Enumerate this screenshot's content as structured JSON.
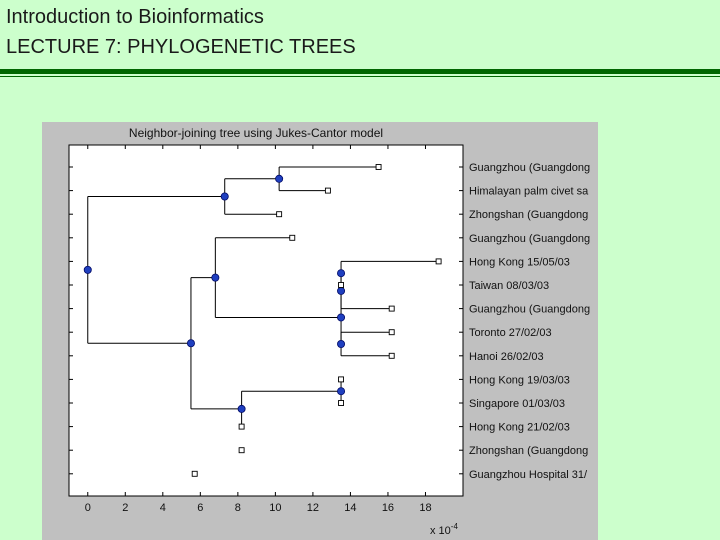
{
  "slide": {
    "title_line1": "Introduction to Bioinformatics",
    "title_line2": "LECTURE 7: PHYLOGENETIC TREES"
  },
  "chart_data": {
    "type": "tree",
    "title": "Neighbor-joining tree using Jukes-Cantor model",
    "xlabel": "",
    "x_multiplier_label": "x 10",
    "x_multiplier_exponent": "-4",
    "xlim": [
      -1,
      20
    ],
    "x_ticks": [
      0,
      2,
      4,
      6,
      8,
      10,
      12,
      14,
      16,
      18
    ],
    "leaves": [
      {
        "label": "Guangzhou (Guangdong",
        "x": 15.5
      },
      {
        "label": "Himalayan palm civet sa",
        "x": 12.8
      },
      {
        "label": "Zhongshan (Guangdong",
        "x": 10.2
      },
      {
        "label": "Guangzhou (Guangdong",
        "x": 10.9
      },
      {
        "label": "Hong Kong 15/05/03",
        "x": 18.7
      },
      {
        "label": "Taiwan 08/03/03",
        "x": 13.5
      },
      {
        "label": "Guangzhou (Guangdong",
        "x": 16.2
      },
      {
        "label": "Toronto 27/02/03",
        "x": 16.2
      },
      {
        "label": "Hanoi 26/02/03",
        "x": 16.2
      },
      {
        "label": "Hong Kong 19/03/03",
        "x": 13.5
      },
      {
        "label": "Singapore 01/03/03",
        "x": 13.5
      },
      {
        "label": "Hong Kong 21/02/03",
        "x": 8.2
      },
      {
        "label": "Zhongshan (Guangdong",
        "x": 8.2
      },
      {
        "label": "Guangzhou Hospital 31/",
        "x": 5.7
      }
    ],
    "internal_nodes": [
      {
        "id": "n1",
        "x": 10.2,
        "children": [
          "L0",
          "L1"
        ]
      },
      {
        "id": "n2",
        "x": 7.3,
        "children": [
          "n1",
          "L2"
        ]
      },
      {
        "id": "n3",
        "x": 13.5,
        "children": [
          "L4",
          "L5"
        ]
      },
      {
        "id": "n4",
        "x": 13.5,
        "children": [
          "n3",
          "L6"
        ]
      },
      {
        "id": "n5",
        "x": 13.5,
        "children": [
          "L7",
          "L8"
        ]
      },
      {
        "id": "n6",
        "x": 13.5,
        "children": [
          "n5",
          "n4"
        ]
      },
      {
        "id": "n7",
        "x": 13.5,
        "children": [
          "L9",
          "L10"
        ]
      },
      {
        "id": "n8",
        "x": 8.2,
        "children": [
          "n7",
          "L11"
        ]
      },
      {
        "id": "n9",
        "x": 6.8,
        "children": [
          "L3",
          "n6"
        ]
      },
      {
        "id": "n10",
        "x": 5.5,
        "children": [
          "n9",
          "n8"
        ]
      },
      {
        "id": "root",
        "x": 0,
        "children": [
          "n2",
          "n10"
        ]
      }
    ]
  }
}
